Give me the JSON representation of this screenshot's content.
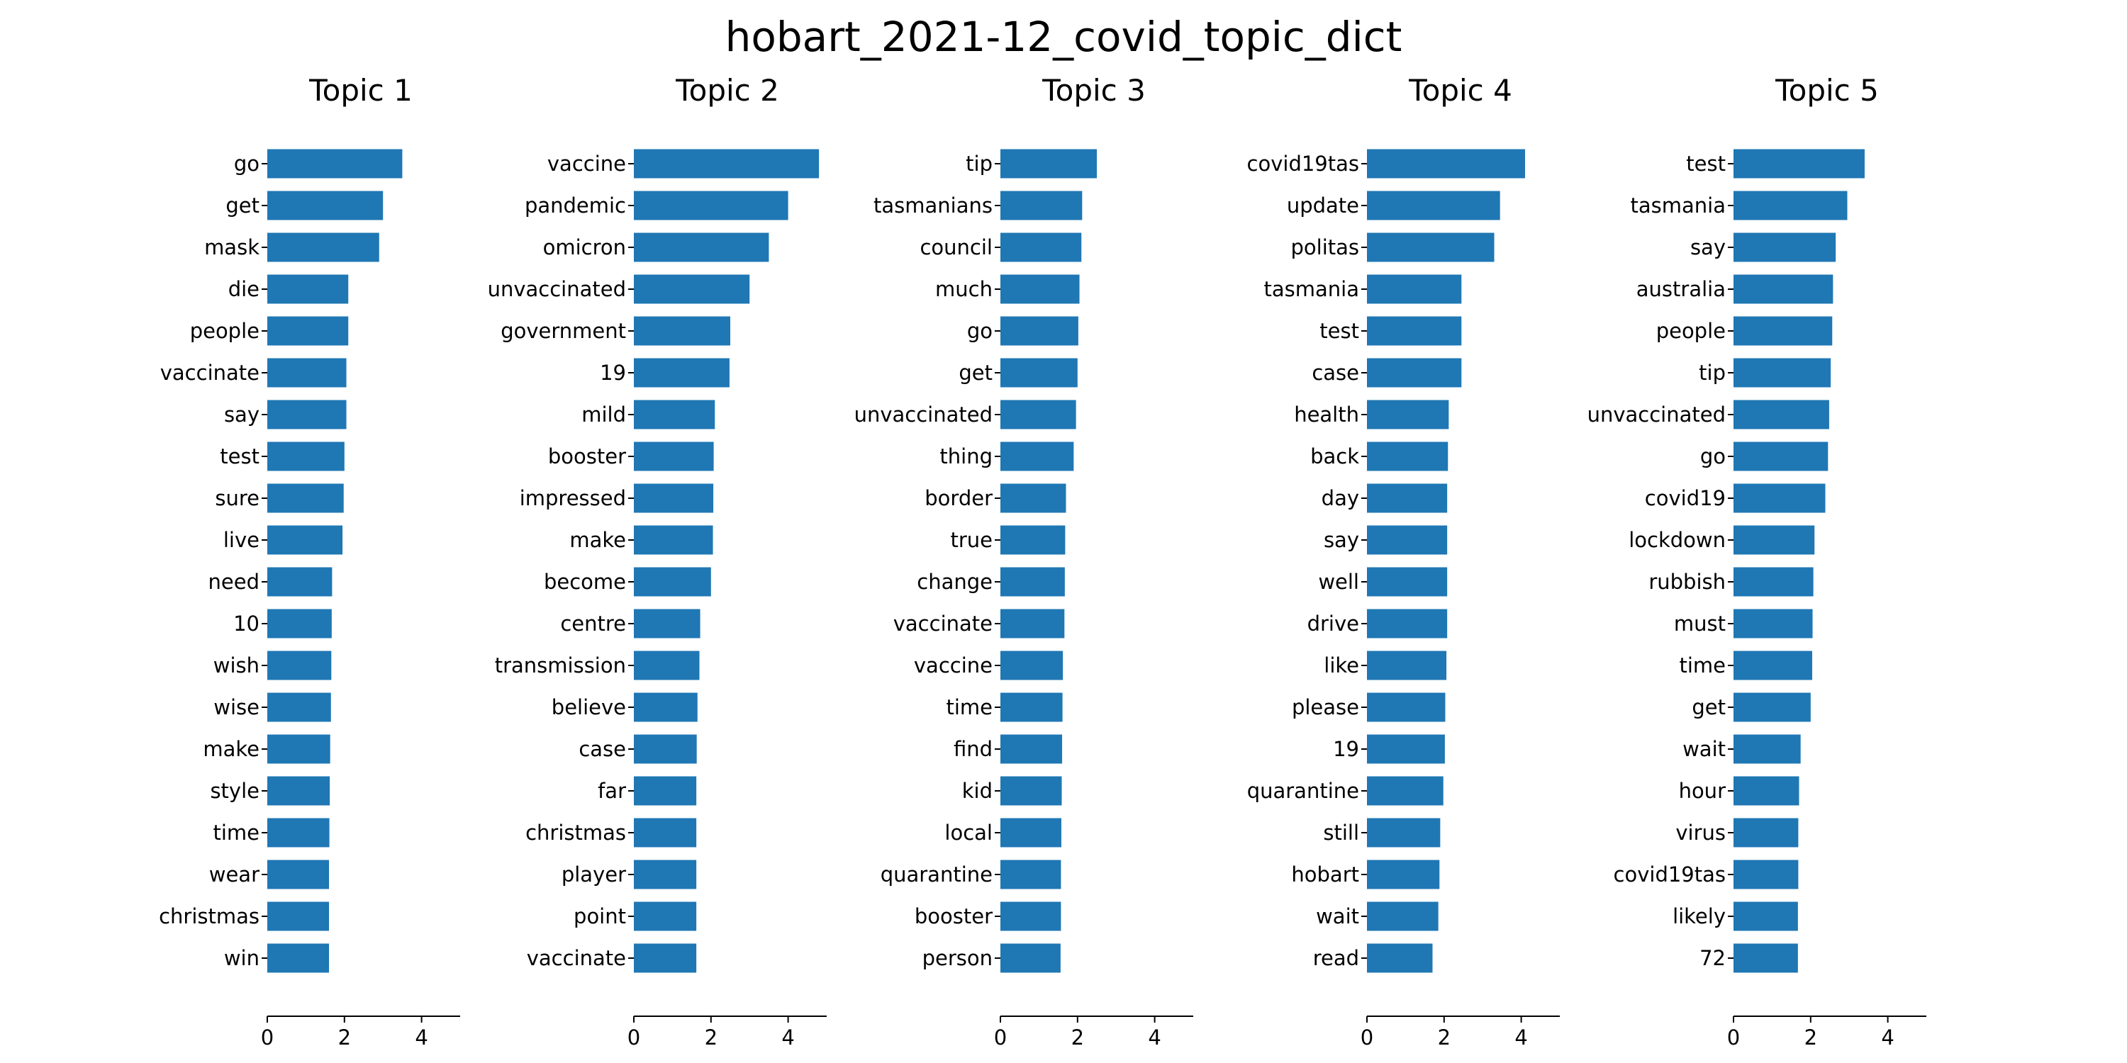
{
  "chart_data": {
    "type": "bar",
    "orientation": "horizontal",
    "title": "hobart_2021-12_covid_topic_dict",
    "xlim": [
      0,
      5
    ],
    "xticks": [
      "0",
      "2",
      "4"
    ],
    "grid": false,
    "bar_color": "#1f77b4",
    "subplots": [
      {
        "title": "Topic 1",
        "categories": [
          "go",
          "get",
          "mask",
          "die",
          "people",
          "vaccinate",
          "say",
          "test",
          "sure",
          "live",
          "need",
          "10",
          "wish",
          "wise",
          "make",
          "style",
          "time",
          "wear",
          "christmas",
          "win"
        ],
        "values": [
          3.5,
          3.0,
          2.9,
          2.1,
          2.1,
          2.05,
          2.05,
          2.0,
          1.98,
          1.95,
          1.68,
          1.67,
          1.66,
          1.65,
          1.63,
          1.62,
          1.61,
          1.6,
          1.6,
          1.6
        ]
      },
      {
        "title": "Topic 2",
        "categories": [
          "vaccine",
          "pandemic",
          "omicron",
          "unvaccinated",
          "government",
          "19",
          "mild",
          "booster",
          "impressed",
          "make",
          "become",
          "centre",
          "transmission",
          "believe",
          "case",
          "far",
          "christmas",
          "player",
          "point",
          "vaccinate"
        ],
        "values": [
          4.8,
          4.0,
          3.5,
          3.0,
          2.5,
          2.48,
          2.1,
          2.07,
          2.06,
          2.05,
          2.0,
          1.72,
          1.7,
          1.65,
          1.63,
          1.62,
          1.62,
          1.62,
          1.62,
          1.62
        ]
      },
      {
        "title": "Topic 3",
        "categories": [
          "tip",
          "tasmanians",
          "council",
          "much",
          "go",
          "get",
          "unvaccinated",
          "thing",
          "border",
          "true",
          "change",
          "vaccinate",
          "vaccine",
          "time",
          "find",
          "kid",
          "local",
          "quarantine",
          "booster",
          "person"
        ],
        "values": [
          2.5,
          2.12,
          2.1,
          2.05,
          2.02,
          2.0,
          1.96,
          1.9,
          1.7,
          1.68,
          1.67,
          1.66,
          1.62,
          1.61,
          1.6,
          1.59,
          1.58,
          1.57,
          1.57,
          1.56
        ]
      },
      {
        "title": "Topic 4",
        "categories": [
          "covid19tas",
          "update",
          "politas",
          "tasmania",
          "test",
          "case",
          "health",
          "back",
          "day",
          "say",
          "well",
          "drive",
          "like",
          "please",
          "19",
          "quarantine",
          "still",
          "hobart",
          "wait",
          "read"
        ],
        "values": [
          4.1,
          3.45,
          3.3,
          2.45,
          2.45,
          2.45,
          2.12,
          2.1,
          2.08,
          2.08,
          2.08,
          2.08,
          2.06,
          2.03,
          2.02,
          1.98,
          1.9,
          1.88,
          1.85,
          1.7
        ]
      },
      {
        "title": "Topic 5",
        "categories": [
          "test",
          "tasmania",
          "say",
          "australia",
          "people",
          "tip",
          "unvaccinated",
          "go",
          "covid19",
          "lockdown",
          "rubbish",
          "must",
          "time",
          "get",
          "wait",
          "hour",
          "virus",
          "covid19tas",
          "likely",
          "72"
        ],
        "values": [
          3.4,
          2.95,
          2.65,
          2.58,
          2.56,
          2.52,
          2.48,
          2.45,
          2.38,
          2.1,
          2.07,
          2.05,
          2.04,
          2.0,
          1.74,
          1.7,
          1.68,
          1.68,
          1.67,
          1.67
        ]
      }
    ]
  }
}
